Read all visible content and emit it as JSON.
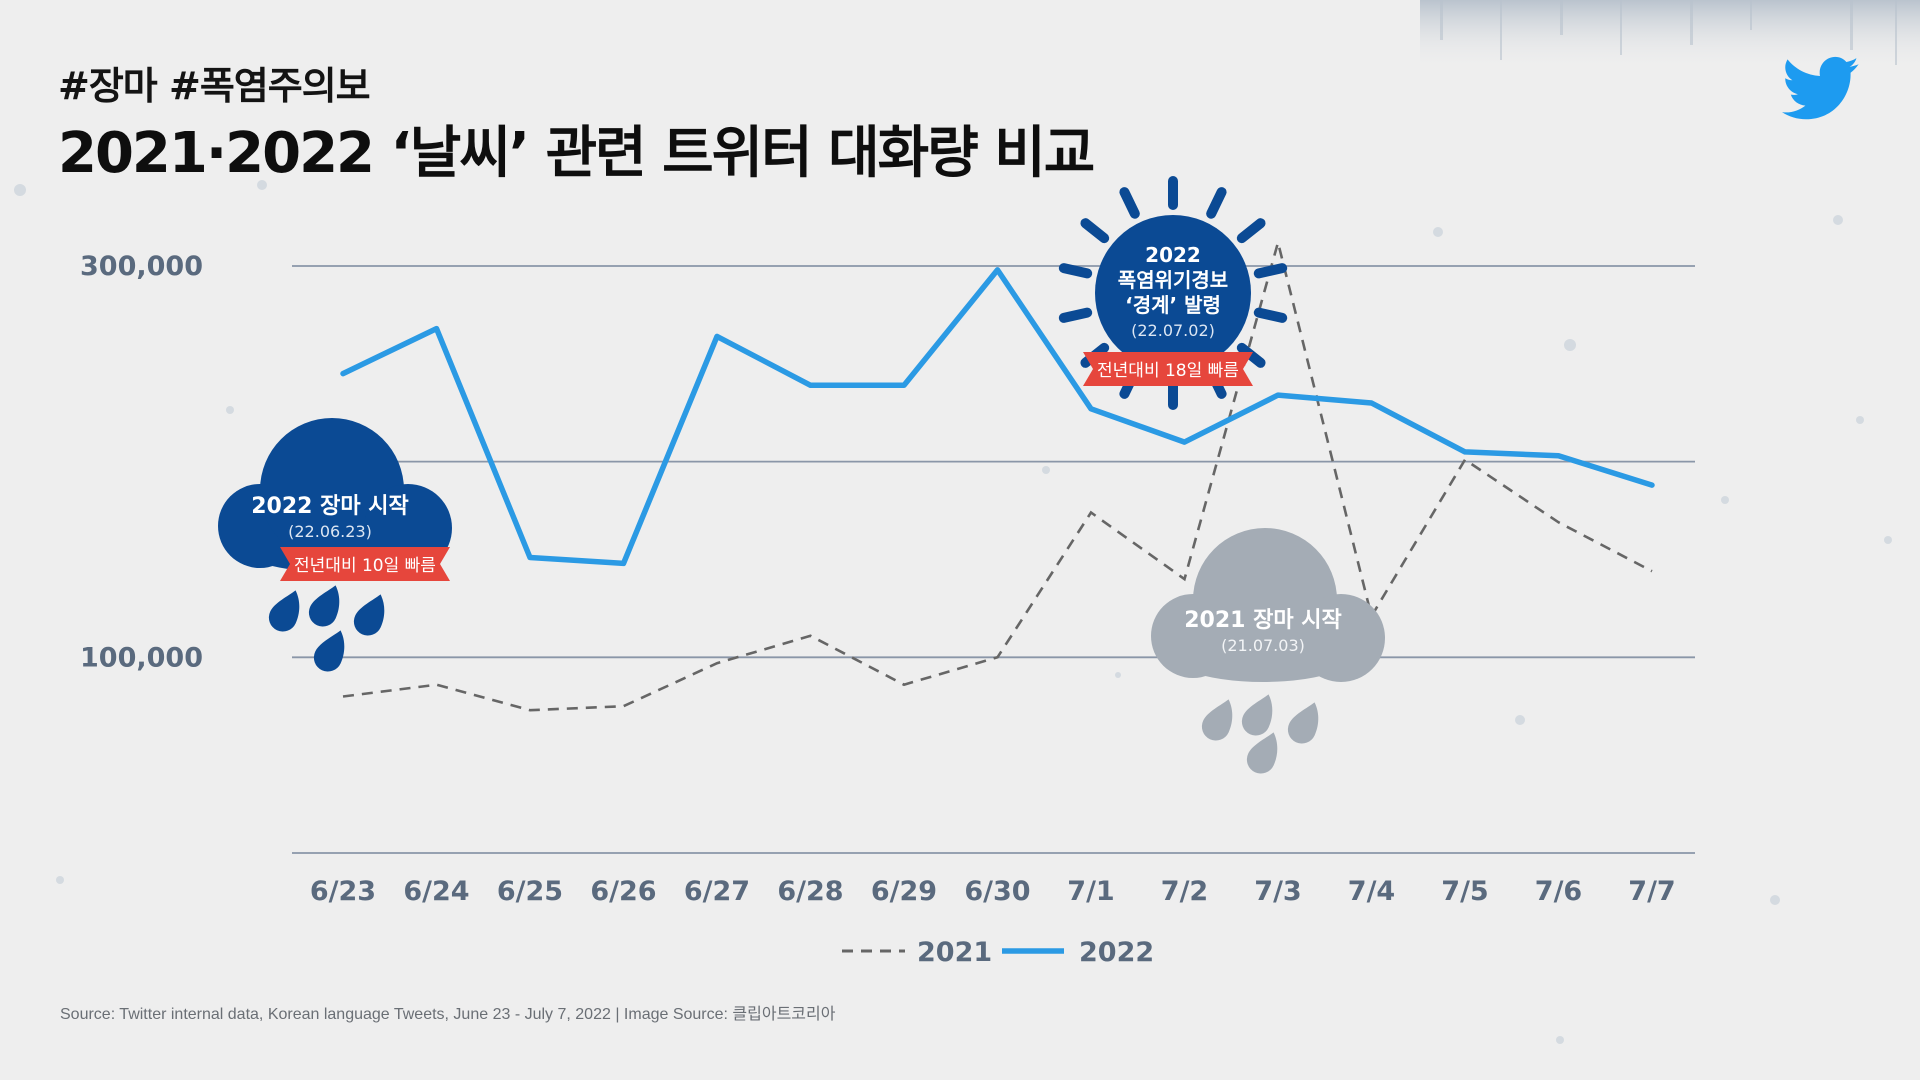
{
  "header": {
    "hashtags": "#장마 #폭염주의보",
    "title": "2021·2022 ‘날씨’ 관련 트위터 대화량 비교"
  },
  "source": "Source: Twitter internal data, Korean language Tweets, June 23 - July 7, 2022 | Image Source: 클립아트코리아",
  "colors": {
    "series_2022": "#2b9ae4",
    "series_2021": "#666666",
    "navy": "#0b4a94",
    "red": "#e6463c",
    "gray_cloud": "#a4acb5",
    "grid": "#8a96a8",
    "axis_text": "#5a6a7e"
  },
  "annotations": {
    "monsoon_2022": {
      "line1": "2022 장마 시작",
      "line2": "(22.06.23)",
      "ribbon": "전년대비 10일 빠름"
    },
    "heat_2022": {
      "line1": "2022",
      "line2": "폭염위기경보",
      "line3": "‘경계’ 발령",
      "line4": "(22.07.02)",
      "ribbon": "전년대비 18일 빠름"
    },
    "monsoon_2021": {
      "line1": "2021 장마 시작",
      "line2": "(21.07.03)"
    }
  },
  "icons": {
    "logo": "twitter-bird-icon",
    "sun": "sun-icon",
    "cloud_2022": "rain-cloud-icon",
    "cloud_2021": "rain-cloud-icon"
  },
  "chart_data": {
    "type": "line",
    "categories": [
      "6/23",
      "6/24",
      "6/25",
      "6/26",
      "6/27",
      "6/28",
      "6/29",
      "6/30",
      "7/1",
      "7/2",
      "7/3",
      "7/4",
      "7/5",
      "7/6",
      "7/7"
    ],
    "yticks": [
      {
        "value": 300000,
        "label": "300,000"
      },
      {
        "value": 100000,
        "label": "100,000"
      }
    ],
    "ylim": [
      0,
      300000
    ],
    "grid": true,
    "legend_position": "bottom-center",
    "series": [
      {
        "name": "2021",
        "style": "dashed",
        "values": [
          80000,
          86000,
          73000,
          75000,
          97000,
          111000,
          86000,
          100000,
          174000,
          140000,
          312000,
          121000,
          201000,
          169000,
          144000
        ]
      },
      {
        "name": "2022",
        "style": "solid",
        "values": [
          245000,
          268000,
          151000,
          148000,
          264000,
          239000,
          239000,
          298000,
          227000,
          210000,
          234000,
          230000,
          205000,
          203000,
          188000
        ]
      }
    ]
  }
}
